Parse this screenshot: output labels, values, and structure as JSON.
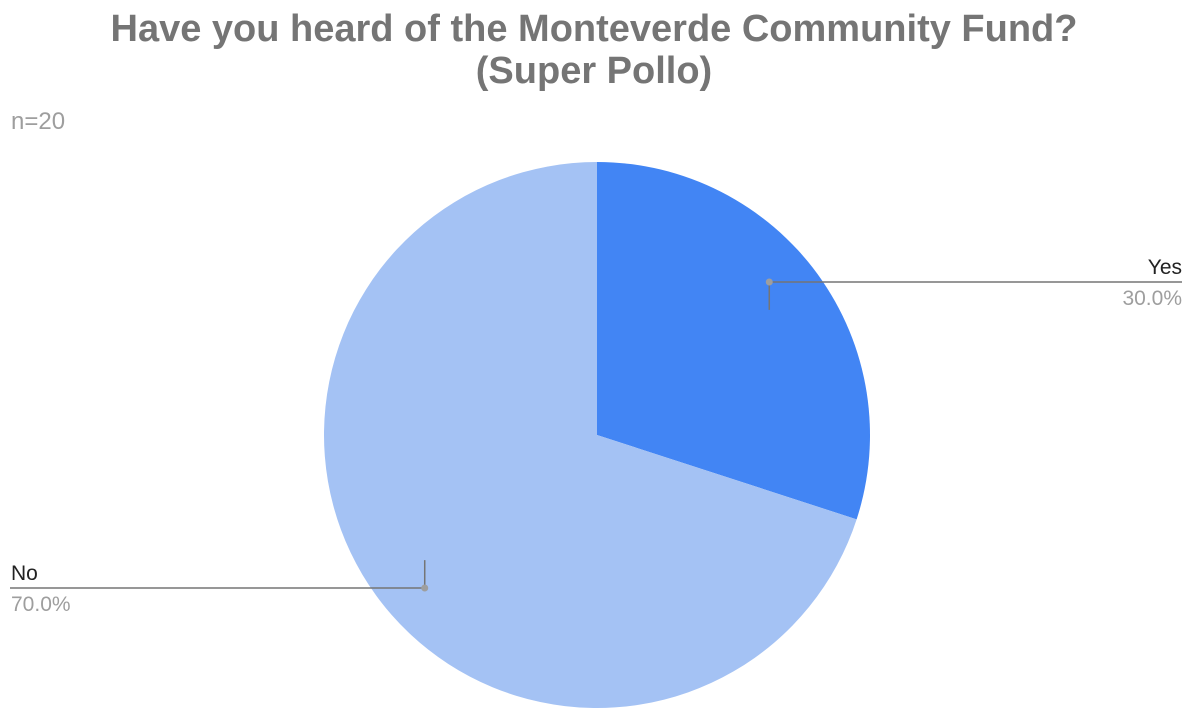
{
  "chart_data": {
    "type": "pie",
    "title": "Have you heard of the Monteverde Community Fund? (Super Pollo)",
    "title_lines": [
      "Have you heard of the Monteverde Community Fund?",
      "(Super Pollo)"
    ],
    "subtitle": "n=20",
    "categories": [
      "Yes",
      "No"
    ],
    "values": [
      30.0,
      70.0
    ],
    "value_labels": [
      "30.0%",
      "70.0%"
    ],
    "colors": [
      "#4285f4",
      "#a4c2f4"
    ],
    "legend": "none",
    "label_style": "callout lines with category name and percentage",
    "start_angle": "12 o'clock, clockwise"
  }
}
